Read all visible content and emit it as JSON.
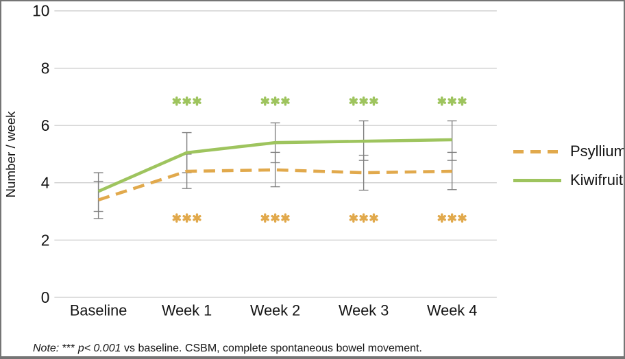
{
  "chart_data": {
    "type": "line",
    "title": "",
    "xlabel": "",
    "ylabel": "Number / week",
    "categories": [
      "Baseline",
      "Week 1",
      "Week 2",
      "Week 3",
      "Week 4"
    ],
    "y_ticks": [
      0,
      2,
      4,
      6,
      8,
      10
    ],
    "ylim": [
      0,
      10
    ],
    "grid": true,
    "legend_position": "right",
    "colors": {
      "grid": "#CACACA",
      "error_bar": "#7F7F7F",
      "psyllium": "#E1A94C",
      "kiwifruit": "#9EC45E",
      "text": "#141414"
    },
    "series": [
      {
        "name": "Psyllium",
        "style": "dashed",
        "color": "#E1A94C",
        "values": [
          3.4,
          4.4,
          4.45,
          4.35,
          4.4
        ],
        "err_low": [
          2.75,
          3.8,
          3.86,
          3.74,
          3.76
        ],
        "err_high": [
          4.05,
          5.0,
          5.06,
          4.96,
          5.06
        ]
      },
      {
        "name": "Kiwifruit",
        "style": "solid",
        "color": "#9EC45E",
        "values": [
          3.7,
          5.05,
          5.4,
          5.45,
          5.5
        ],
        "err_low": [
          3.0,
          4.35,
          4.7,
          4.78,
          4.78
        ],
        "err_high": [
          4.35,
          5.75,
          6.09,
          6.16,
          6.16
        ]
      }
    ],
    "annotations": [
      {
        "series": "Kiwifruit",
        "text": "***",
        "y": 6.85,
        "color": "#9EC45E",
        "weeks": [
          "Week 1",
          "Week 2",
          "Week 3",
          "Week 4"
        ]
      },
      {
        "series": "Psyllium",
        "text": "***",
        "y": 2.77,
        "color": "#E1A94C",
        "weeks": [
          "Week 1",
          "Week 2",
          "Week 3",
          "Week 4"
        ]
      }
    ]
  },
  "legend": {
    "items": [
      {
        "label": "Psyllium"
      },
      {
        "label": "Kiwifruit"
      }
    ]
  },
  "note": {
    "prefix": "Note: ",
    "stars": "*** ",
    "p_value": "p< 0.001",
    "rest": " vs baseline. CSBM, complete spontaneous bowel movement."
  }
}
